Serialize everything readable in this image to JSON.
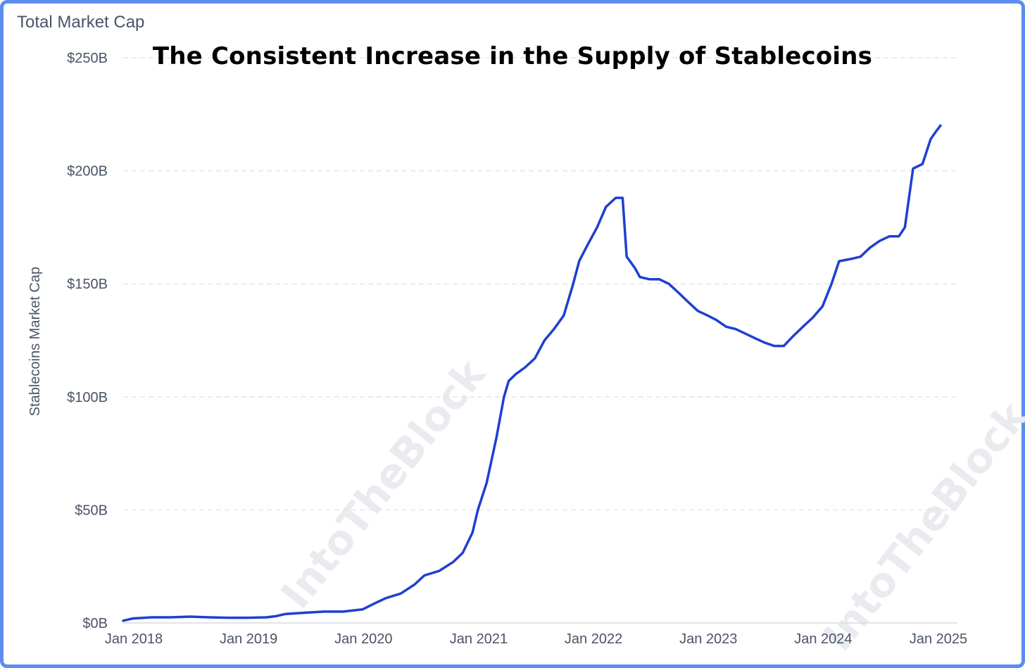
{
  "panel_title": "Total Market Cap",
  "chart_data": {
    "type": "line",
    "title": "The Consistent Increase in the Supply of Stablecoins",
    "xlabel": "",
    "ylabel": "Stablecoins Market Cap",
    "y_unit": "B USD",
    "ylim": [
      0,
      250
    ],
    "y_ticks": [
      {
        "value": 0,
        "label": "$0B"
      },
      {
        "value": 50,
        "label": "$50B"
      },
      {
        "value": 100,
        "label": "$100B"
      },
      {
        "value": 150,
        "label": "$150B"
      },
      {
        "value": 200,
        "label": "$200B"
      },
      {
        "value": 250,
        "label": "$250B"
      }
    ],
    "xlim": [
      "2018-01-01",
      "2025-02-15"
    ],
    "x_ticks": [
      {
        "value": "2018-01-01",
        "label": "Jan 2018"
      },
      {
        "value": "2019-01-01",
        "label": "Jan 2019"
      },
      {
        "value": "2020-01-01",
        "label": "Jan 2020"
      },
      {
        "value": "2021-01-01",
        "label": "Jan 2021"
      },
      {
        "value": "2022-01-01",
        "label": "Jan 2022"
      },
      {
        "value": "2023-01-01",
        "label": "Jan 2023"
      },
      {
        "value": "2024-01-01",
        "label": "Jan 2024"
      },
      {
        "value": "2025-01-01",
        "label": "Jan 2025"
      }
    ],
    "grid": "horizontal-dashed",
    "legend": "none",
    "colors": {
      "line": "#1f3fd1",
      "grid": "#e3e6ec",
      "text": "#4a5468",
      "frame": "#5b8def"
    },
    "watermark": "IntoTheBlock",
    "series": [
      {
        "points": [
          [
            "2018-01-01",
            1
          ],
          [
            "2018-02-01",
            2
          ],
          [
            "2018-04-01",
            2.5
          ],
          [
            "2018-06-01",
            2.5
          ],
          [
            "2018-08-01",
            2.8
          ],
          [
            "2018-10-01",
            2.5
          ],
          [
            "2018-12-01",
            2.3
          ],
          [
            "2019-02-01",
            2.3
          ],
          [
            "2019-04-01",
            2.5
          ],
          [
            "2019-05-01",
            3
          ],
          [
            "2019-06-01",
            4
          ],
          [
            "2019-08-01",
            4.5
          ],
          [
            "2019-10-01",
            5
          ],
          [
            "2019-12-01",
            5
          ],
          [
            "2020-02-01",
            6
          ],
          [
            "2020-03-15",
            9
          ],
          [
            "2020-04-15",
            11
          ],
          [
            "2020-06-01",
            13
          ],
          [
            "2020-07-15",
            17
          ],
          [
            "2020-08-15",
            21
          ],
          [
            "2020-10-01",
            23
          ],
          [
            "2020-11-15",
            27
          ],
          [
            "2020-12-15",
            31
          ],
          [
            "2021-01-15",
            40
          ],
          [
            "2021-02-01",
            50
          ],
          [
            "2021-03-01",
            62
          ],
          [
            "2021-04-01",
            82
          ],
          [
            "2021-04-25",
            100
          ],
          [
            "2021-05-10",
            107
          ],
          [
            "2021-06-01",
            110
          ],
          [
            "2021-07-01",
            113
          ],
          [
            "2021-08-01",
            117
          ],
          [
            "2021-09-01",
            125
          ],
          [
            "2021-10-01",
            130
          ],
          [
            "2021-11-01",
            136
          ],
          [
            "2021-12-01",
            150
          ],
          [
            "2021-12-20",
            160
          ],
          [
            "2022-01-15",
            167
          ],
          [
            "2022-02-15",
            175
          ],
          [
            "2022-03-15",
            184
          ],
          [
            "2022-04-15",
            188
          ],
          [
            "2022-05-07",
            188
          ],
          [
            "2022-05-20",
            162
          ],
          [
            "2022-06-15",
            157
          ],
          [
            "2022-07-01",
            153
          ],
          [
            "2022-08-01",
            152
          ],
          [
            "2022-09-01",
            152
          ],
          [
            "2022-10-01",
            150
          ],
          [
            "2022-11-01",
            146
          ],
          [
            "2022-12-01",
            142
          ],
          [
            "2023-01-01",
            138
          ],
          [
            "2023-02-01",
            136
          ],
          [
            "2023-03-01",
            134
          ],
          [
            "2023-04-01",
            131
          ],
          [
            "2023-05-01",
            130
          ],
          [
            "2023-06-01",
            128
          ],
          [
            "2023-07-01",
            126
          ],
          [
            "2023-08-01",
            124
          ],
          [
            "2023-09-01",
            122.5
          ],
          [
            "2023-10-01",
            122.5
          ],
          [
            "2023-11-01",
            127
          ],
          [
            "2023-12-01",
            131
          ],
          [
            "2024-01-01",
            135
          ],
          [
            "2024-02-01",
            140
          ],
          [
            "2024-03-01",
            150
          ],
          [
            "2024-03-25",
            160
          ],
          [
            "2024-05-01",
            161
          ],
          [
            "2024-06-01",
            162
          ],
          [
            "2024-07-01",
            166
          ],
          [
            "2024-08-01",
            169
          ],
          [
            "2024-09-01",
            171
          ],
          [
            "2024-10-01",
            171
          ],
          [
            "2024-10-20",
            175
          ],
          [
            "2024-11-15",
            201
          ],
          [
            "2024-12-15",
            203
          ],
          [
            "2025-01-10",
            214
          ],
          [
            "2025-01-25",
            217
          ],
          [
            "2025-02-10",
            220
          ]
        ]
      }
    ]
  }
}
